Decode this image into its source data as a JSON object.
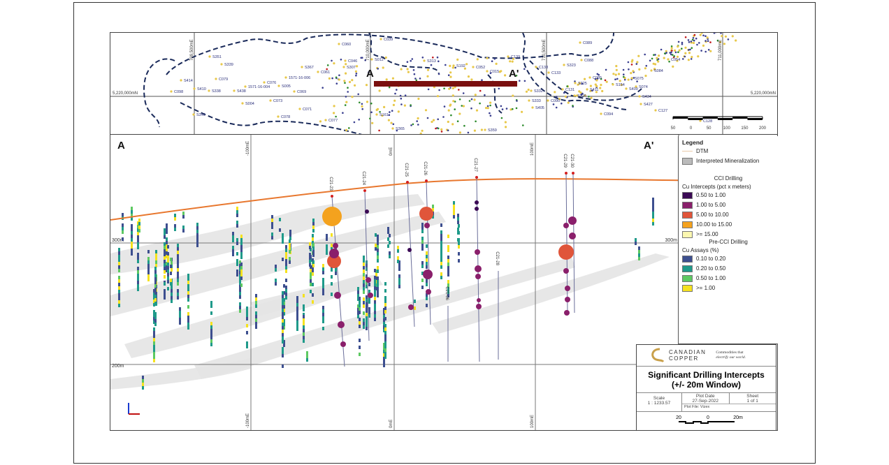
{
  "plan_map": {
    "northing_label": "5,220,000mN",
    "easting_labels": [
      "709,500mE",
      "710,000mE",
      "710,500mE",
      "711,000mE"
    ],
    "section_line_labels": [
      "A",
      "A'"
    ],
    "point_labels": [
      "C060",
      "C039",
      "C139",
      "S367",
      "C061",
      "C046",
      "S307",
      "1571-16-006",
      "C076",
      "1571-16-004",
      "S005",
      "C079",
      "S414",
      "S410",
      "S338",
      "S438",
      "C098",
      "S004",
      "C073",
      "C071",
      "C078",
      "C077",
      "S340",
      "C069",
      "S351",
      "S339",
      "C089",
      "C054",
      "S084",
      "C138",
      "C133",
      "S075",
      "S074",
      "S434",
      "S427",
      "C127",
      "C094",
      "C090",
      "S332",
      "S333",
      "S405",
      "C128",
      "S012",
      "S313",
      "C052",
      "C015",
      "S192",
      "S161",
      "S365",
      "S359",
      "C088",
      "S323",
      "S325",
      "S411",
      "C085",
      "S154",
      "S409",
      "S326",
      "C131"
    ],
    "scale_bar": {
      "ticks": [
        "50",
        "0",
        "50",
        "100",
        "150",
        "200"
      ]
    }
  },
  "section": {
    "end_labels": [
      "A",
      "A'"
    ],
    "easting_labels": [
      "-100mE",
      "0mE",
      "100mE"
    ],
    "elevation_labels": [
      "300m",
      "300m",
      "200m"
    ],
    "holes": [
      "C21-23",
      "C21-24",
      "C21-25",
      "C21-26",
      "C21-27",
      "C21-28",
      "C21-06",
      "C21-29",
      "C21-30"
    ]
  },
  "legend": {
    "title": "Legend",
    "dtm": "DTM",
    "mineralization": "Interpreted Mineralization",
    "cci_heading": "CCI Drilling",
    "cci_subheading": "Cu Intercepts (pct x meters)",
    "cci_classes": [
      {
        "label": "0.50 to 1.00",
        "color": "#3b0a55"
      },
      {
        "label": "1.00 to 5.00",
        "color": "#8a1f6b"
      },
      {
        "label": "5.00 to 10.00",
        "color": "#e0553a"
      },
      {
        "label": "10.00 to 15.00",
        "color": "#f4a21e"
      },
      {
        "label": ">= 15.00",
        "color": "#fbf7b0"
      }
    ],
    "pre_heading": "Pre-CCI Drilling",
    "pre_subheading": "Cu Assays (%)",
    "pre_classes": [
      {
        "label": "0.10 to 0.20",
        "color": "#3d4f8f"
      },
      {
        "label": "0.20 to 0.50",
        "color": "#1f9a8a"
      },
      {
        "label": "0.50 to 1.00",
        "color": "#5ec962"
      },
      {
        "label": ">= 1.00",
        "color": "#f5e21f"
      }
    ]
  },
  "title_block": {
    "company_line1": "CANADIAN",
    "company_line2": "COPPER",
    "tagline_1": "Commodities that",
    "tagline_2": "electrify our world.",
    "title_line1": "Significant Drilling Intercepts",
    "title_line2": "(+/- 20m Window)",
    "scale_label": "Scale",
    "scale_value": "1 : 1233.57",
    "plot_date_label": "Plot Date",
    "plot_date": "27-Sep-2022",
    "sheet_label": "Sheet",
    "sheet_value": "1 of 1",
    "plot_file": "Plot File: Vizex",
    "scale_bar_labels": [
      "20",
      "0",
      "20m"
    ]
  },
  "colors": {
    "dtm": "#e8772e",
    "mineralization": "#e4e4e4",
    "section_line": "#7a0f0f",
    "boundary": "#1a2a5a"
  }
}
